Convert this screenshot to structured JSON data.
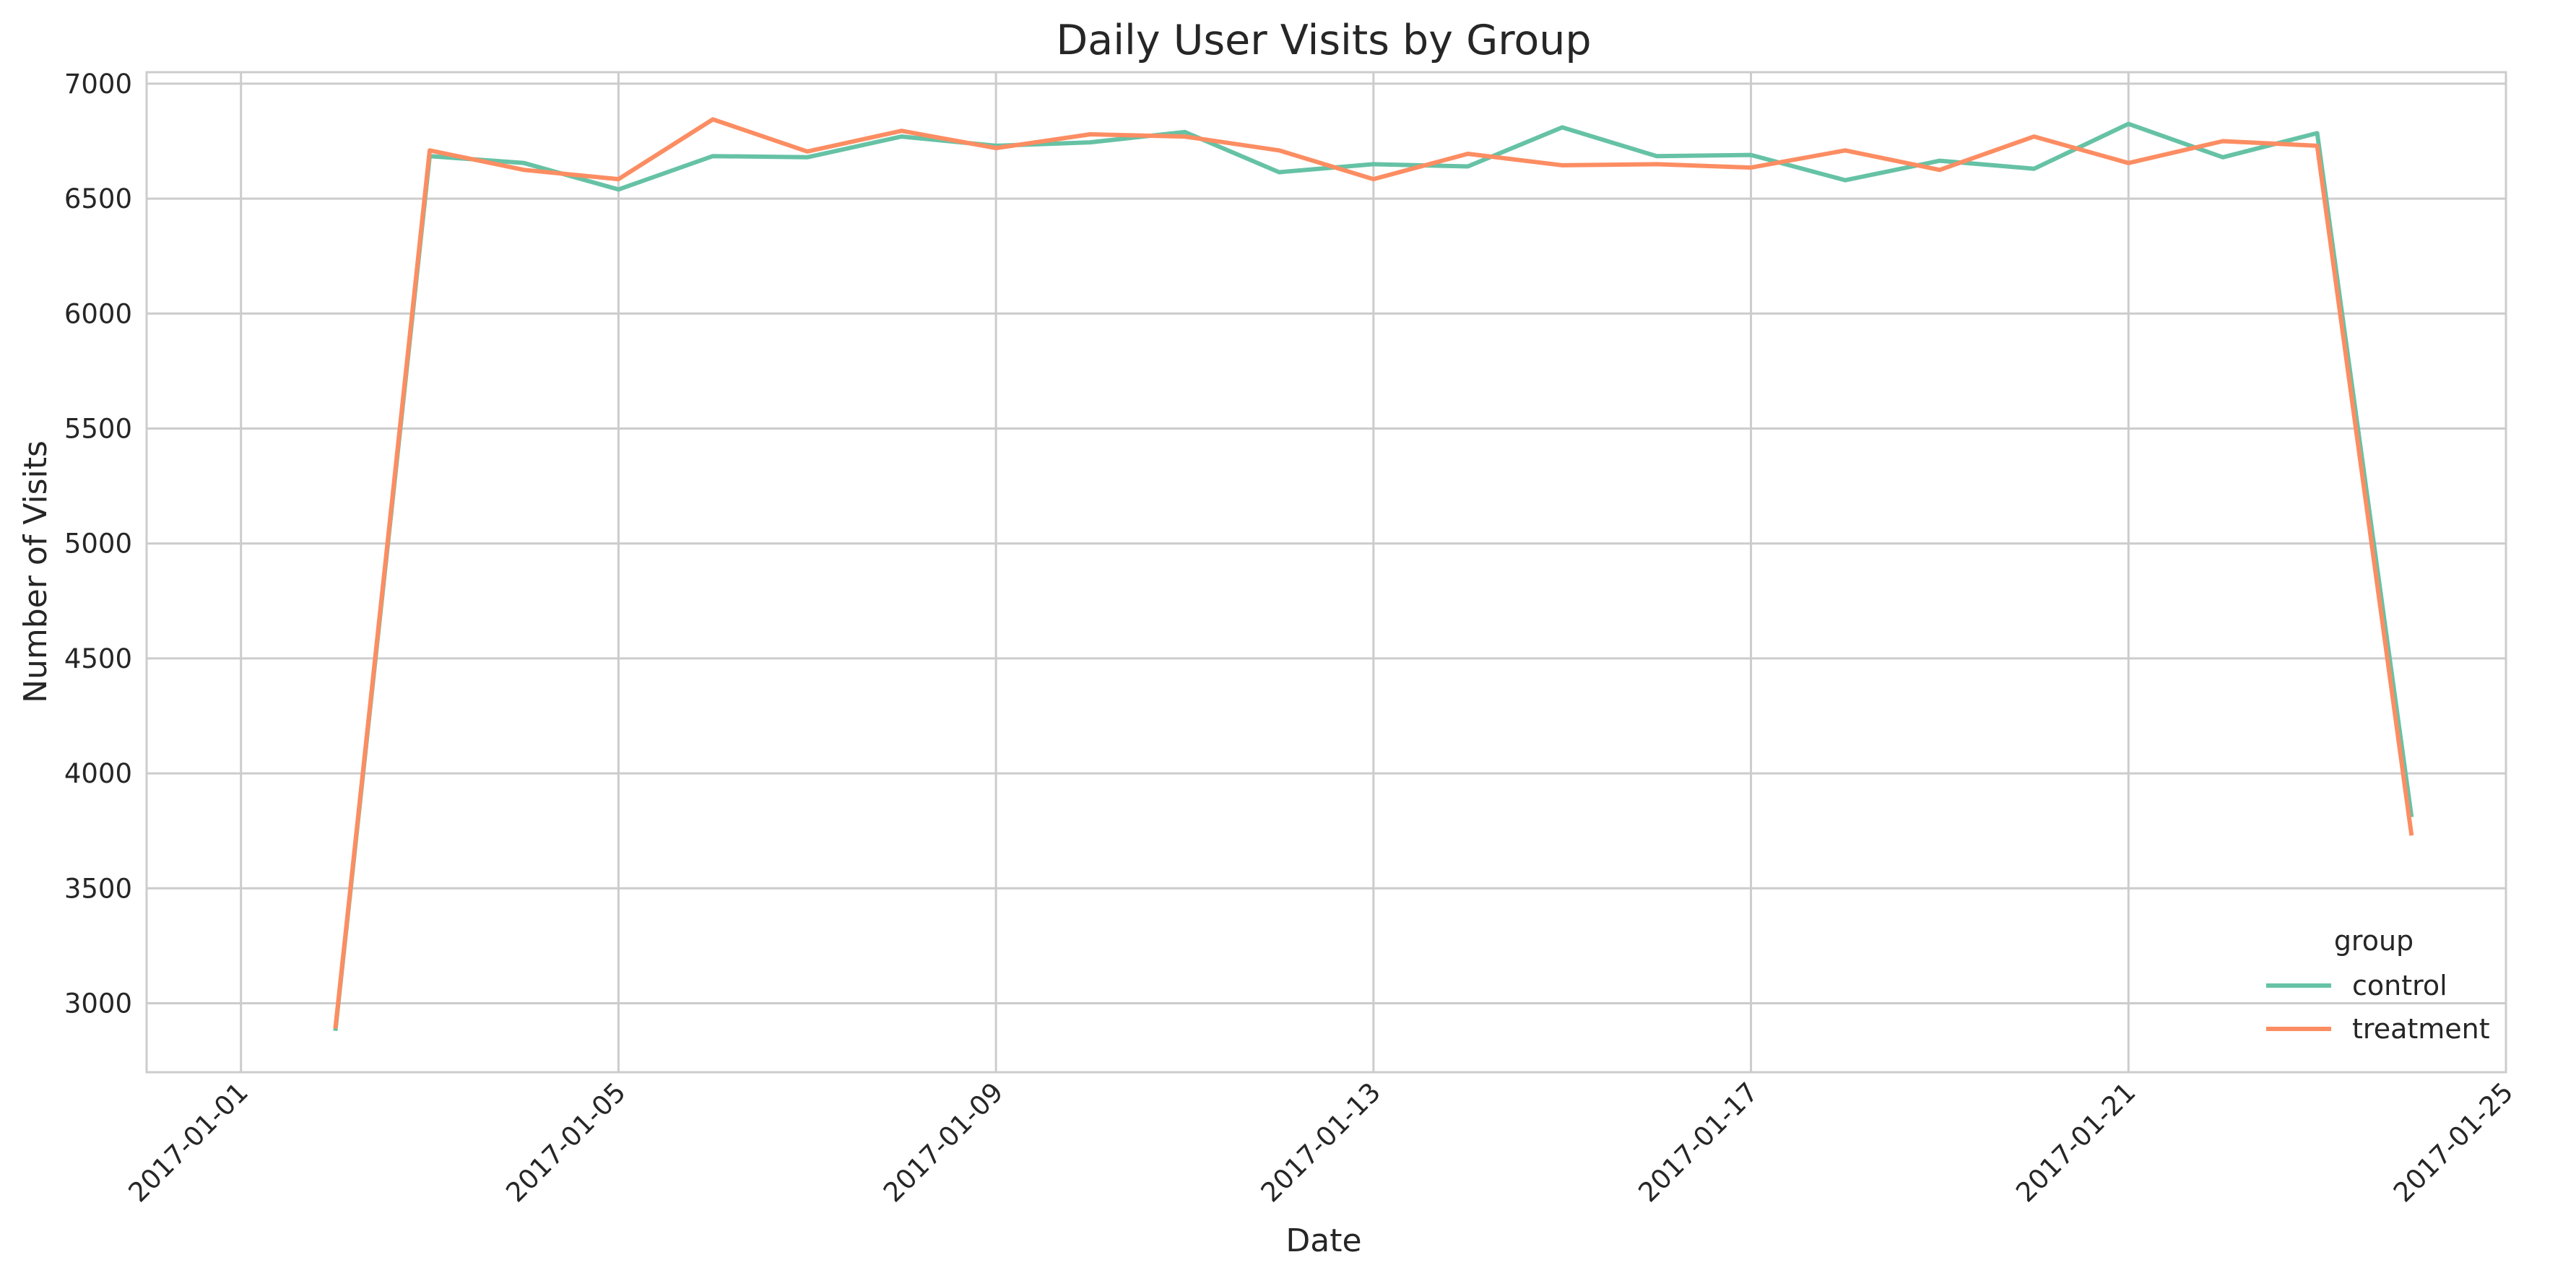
{
  "chart_data": {
    "type": "line",
    "title": "Daily User Visits by Group",
    "xlabel": "Date",
    "ylabel": "Number of Visits",
    "xlim": [
      "2016-12-31",
      "2017-01-25"
    ],
    "ylim": [
      2700,
      7050
    ],
    "x_ticks": [
      "2017-01-01",
      "2017-01-05",
      "2017-01-09",
      "2017-01-13",
      "2017-01-17",
      "2017-01-21",
      "2017-01-25"
    ],
    "y_ticks": [
      3000,
      3500,
      4000,
      4500,
      5000,
      5500,
      6000,
      6500,
      7000
    ],
    "grid": true,
    "legend": {
      "title": "group",
      "placement": "lower-right"
    },
    "x": [
      "2017-01-02",
      "2017-01-03",
      "2017-01-04",
      "2017-01-05",
      "2017-01-06",
      "2017-01-07",
      "2017-01-08",
      "2017-01-09",
      "2017-01-10",
      "2017-01-11",
      "2017-01-12",
      "2017-01-13",
      "2017-01-14",
      "2017-01-15",
      "2017-01-16",
      "2017-01-17",
      "2017-01-18",
      "2017-01-19",
      "2017-01-20",
      "2017-01-21",
      "2017-01-22",
      "2017-01-23",
      "2017-01-24"
    ],
    "series": [
      {
        "name": "control",
        "color": "#66c2a5",
        "values": [
          2880,
          6685,
          6655,
          6540,
          6685,
          6680,
          6770,
          6730,
          6745,
          6790,
          6615,
          6650,
          6640,
          6810,
          6685,
          6690,
          6580,
          6665,
          6630,
          6825,
          6680,
          6785,
          3810
        ]
      },
      {
        "name": "treatment",
        "color": "#fc8d62",
        "values": [
          2890,
          6710,
          6625,
          6585,
          6845,
          6705,
          6795,
          6720,
          6780,
          6770,
          6710,
          6585,
          6695,
          6645,
          6650,
          6635,
          6710,
          6625,
          6770,
          6655,
          6750,
          6730,
          3730
        ]
      }
    ]
  }
}
